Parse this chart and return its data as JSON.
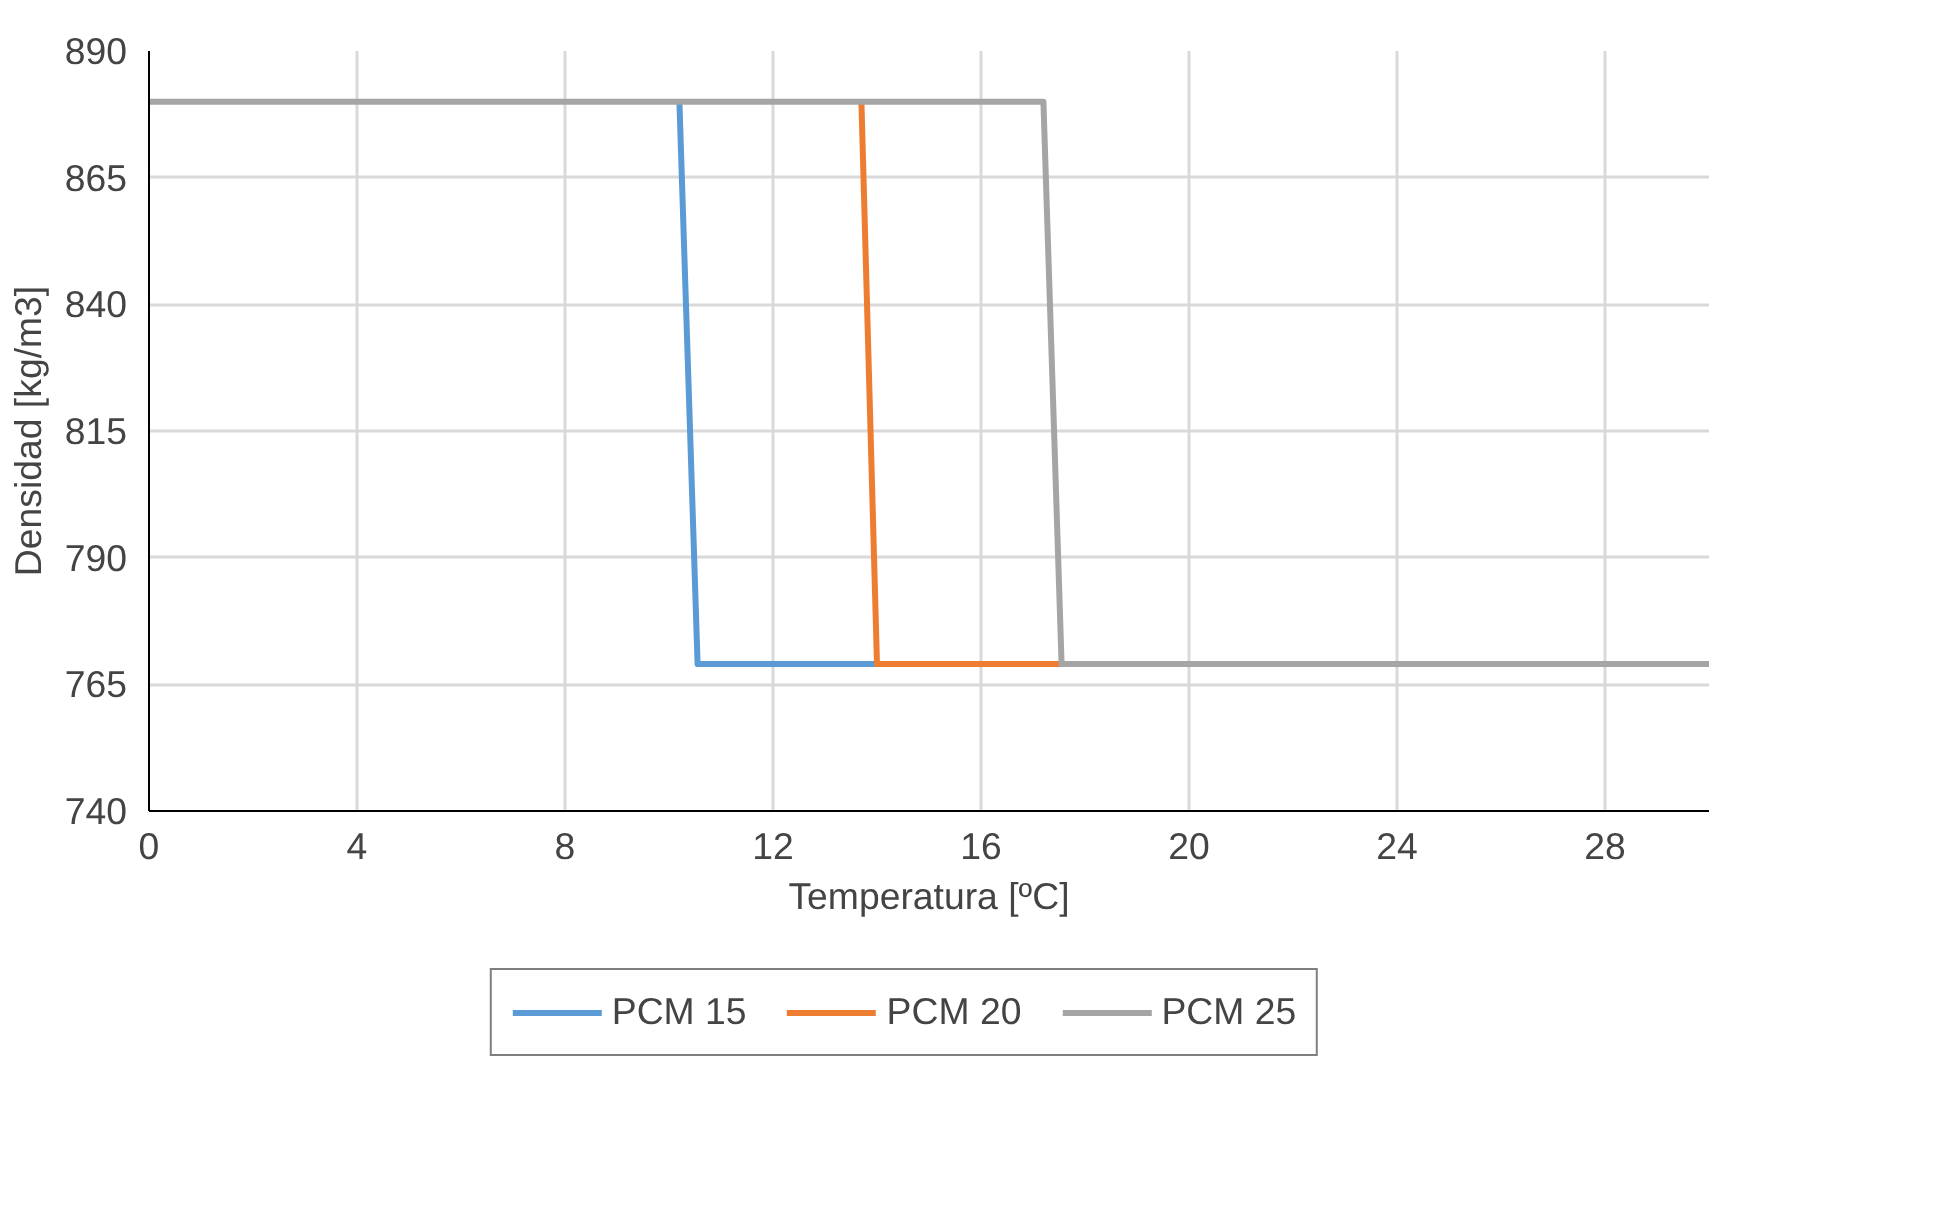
{
  "chart_data": {
    "type": "line",
    "xlabel": "Temperatura [ºC]",
    "ylabel": "Densidad [kg/m3]",
    "xlim": [
      0,
      30
    ],
    "xticks": [
      0,
      4,
      8,
      12,
      16,
      20,
      24,
      28
    ],
    "ylim": [
      740,
      890
    ],
    "yticks": [
      740,
      765,
      790,
      815,
      840,
      865,
      890
    ],
    "grid": true,
    "legend": "bottom",
    "marker": "none",
    "line_style": "solid",
    "series": [
      {
        "name": "PCM 15",
        "color": "#5b9bd5",
        "x": [
          10.2,
          10.55,
          14.0
        ],
        "values": [
          880,
          769,
          769
        ]
      },
      {
        "name": "PCM 20",
        "color": "#ed7d31",
        "x": [
          13.7,
          14.0,
          17.55
        ],
        "values": [
          880,
          769,
          769
        ]
      },
      {
        "name": "PCM 25",
        "color": "#a5a5a5",
        "x": [
          0,
          17.2,
          17.55,
          17.7,
          30
        ],
        "values": [
          880,
          880,
          769,
          769,
          769
        ]
      }
    ]
  }
}
